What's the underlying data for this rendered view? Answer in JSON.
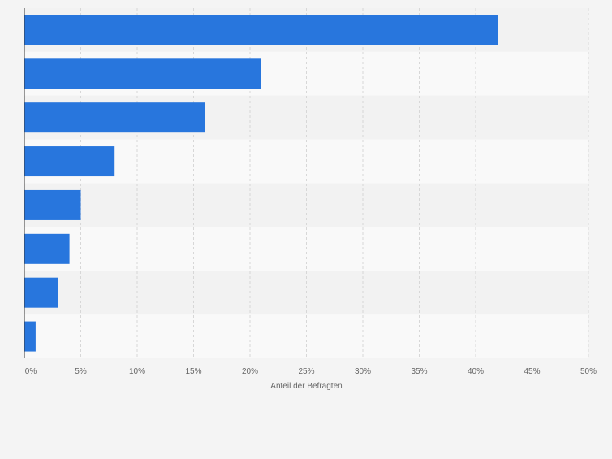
{
  "chart_data": {
    "type": "bar",
    "orientation": "horizontal",
    "categories": [
      "",
      "",
      "",
      "",
      "",
      "",
      "",
      ""
    ],
    "values": [
      42,
      21,
      16,
      8,
      5,
      4,
      3,
      1
    ],
    "title": "",
    "xlabel": "Anteil der Befragten",
    "ylabel": "",
    "xlim": [
      0,
      50
    ],
    "x_ticks": [
      "0%",
      "5%",
      "10%",
      "15%",
      "20%",
      "25%",
      "30%",
      "35%",
      "40%",
      "45%",
      "50%"
    ],
    "grid": true,
    "legend": "none"
  },
  "colors": {
    "bar": "#2876dd",
    "page_background": "#f4f4f4",
    "band_light": "#f9f9f9",
    "band_dark": "#f2f2f2",
    "gridline": "#d7d7d7",
    "axis": "#333333",
    "tick_text": "#666666"
  }
}
